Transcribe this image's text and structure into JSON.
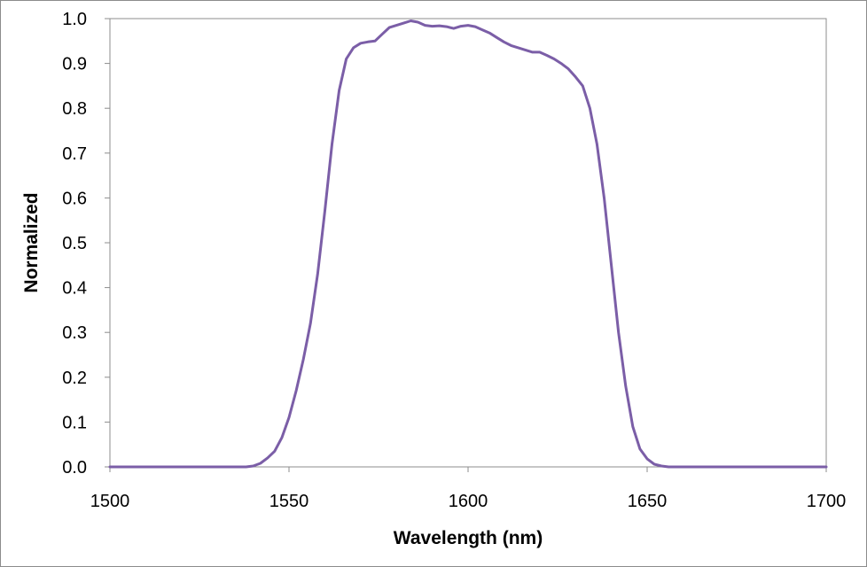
{
  "chart_data": {
    "type": "line",
    "title": "",
    "xlabel": "Wavelength (nm)",
    "ylabel": "Normalized",
    "xlim": [
      1500,
      1700
    ],
    "ylim": [
      0.0,
      1.0
    ],
    "xticks": [
      1500,
      1550,
      1600,
      1650,
      1700
    ],
    "xtick_labels": [
      "1500",
      "1550",
      "1600",
      "1650",
      "1700"
    ],
    "yticks": [
      0.0,
      0.1,
      0.2,
      0.3,
      0.4,
      0.5,
      0.6,
      0.7,
      0.8,
      0.9,
      1.0
    ],
    "ytick_labels": [
      "0.0",
      "0.1",
      "0.2",
      "0.3",
      "0.4",
      "0.5",
      "0.6",
      "0.7",
      "0.8",
      "0.9",
      "1.0"
    ],
    "grid": false,
    "legend": "none",
    "series": [
      {
        "color": "#7b5ea7",
        "x": [
          1500,
          1520,
          1535,
          1538,
          1540,
          1542,
          1544,
          1546,
          1548,
          1550,
          1552,
          1554,
          1556,
          1558,
          1560,
          1562,
          1564,
          1566,
          1568,
          1570,
          1572,
          1574,
          1576,
          1578,
          1580,
          1582,
          1584,
          1586,
          1588,
          1590,
          1592,
          1594,
          1596,
          1598,
          1600,
          1602,
          1604,
          1606,
          1608,
          1610,
          1612,
          1614,
          1616,
          1618,
          1620,
          1622,
          1624,
          1626,
          1628,
          1630,
          1632,
          1634,
          1636,
          1638,
          1640,
          1642,
          1644,
          1646,
          1648,
          1650,
          1652,
          1654,
          1656,
          1658,
          1660,
          1680,
          1700
        ],
        "y": [
          0.0,
          0.0,
          0.0,
          0.0,
          0.002,
          0.008,
          0.02,
          0.035,
          0.065,
          0.11,
          0.17,
          0.24,
          0.32,
          0.43,
          0.57,
          0.72,
          0.84,
          0.91,
          0.935,
          0.945,
          0.948,
          0.95,
          0.965,
          0.98,
          0.985,
          0.99,
          0.995,
          0.992,
          0.985,
          0.983,
          0.984,
          0.982,
          0.978,
          0.983,
          0.985,
          0.982,
          0.975,
          0.968,
          0.958,
          0.948,
          0.94,
          0.935,
          0.93,
          0.925,
          0.925,
          0.918,
          0.91,
          0.9,
          0.888,
          0.87,
          0.85,
          0.8,
          0.72,
          0.6,
          0.45,
          0.3,
          0.18,
          0.09,
          0.04,
          0.018,
          0.006,
          0.002,
          0.0,
          0.0,
          0.0,
          0.0,
          0.0
        ]
      }
    ]
  }
}
